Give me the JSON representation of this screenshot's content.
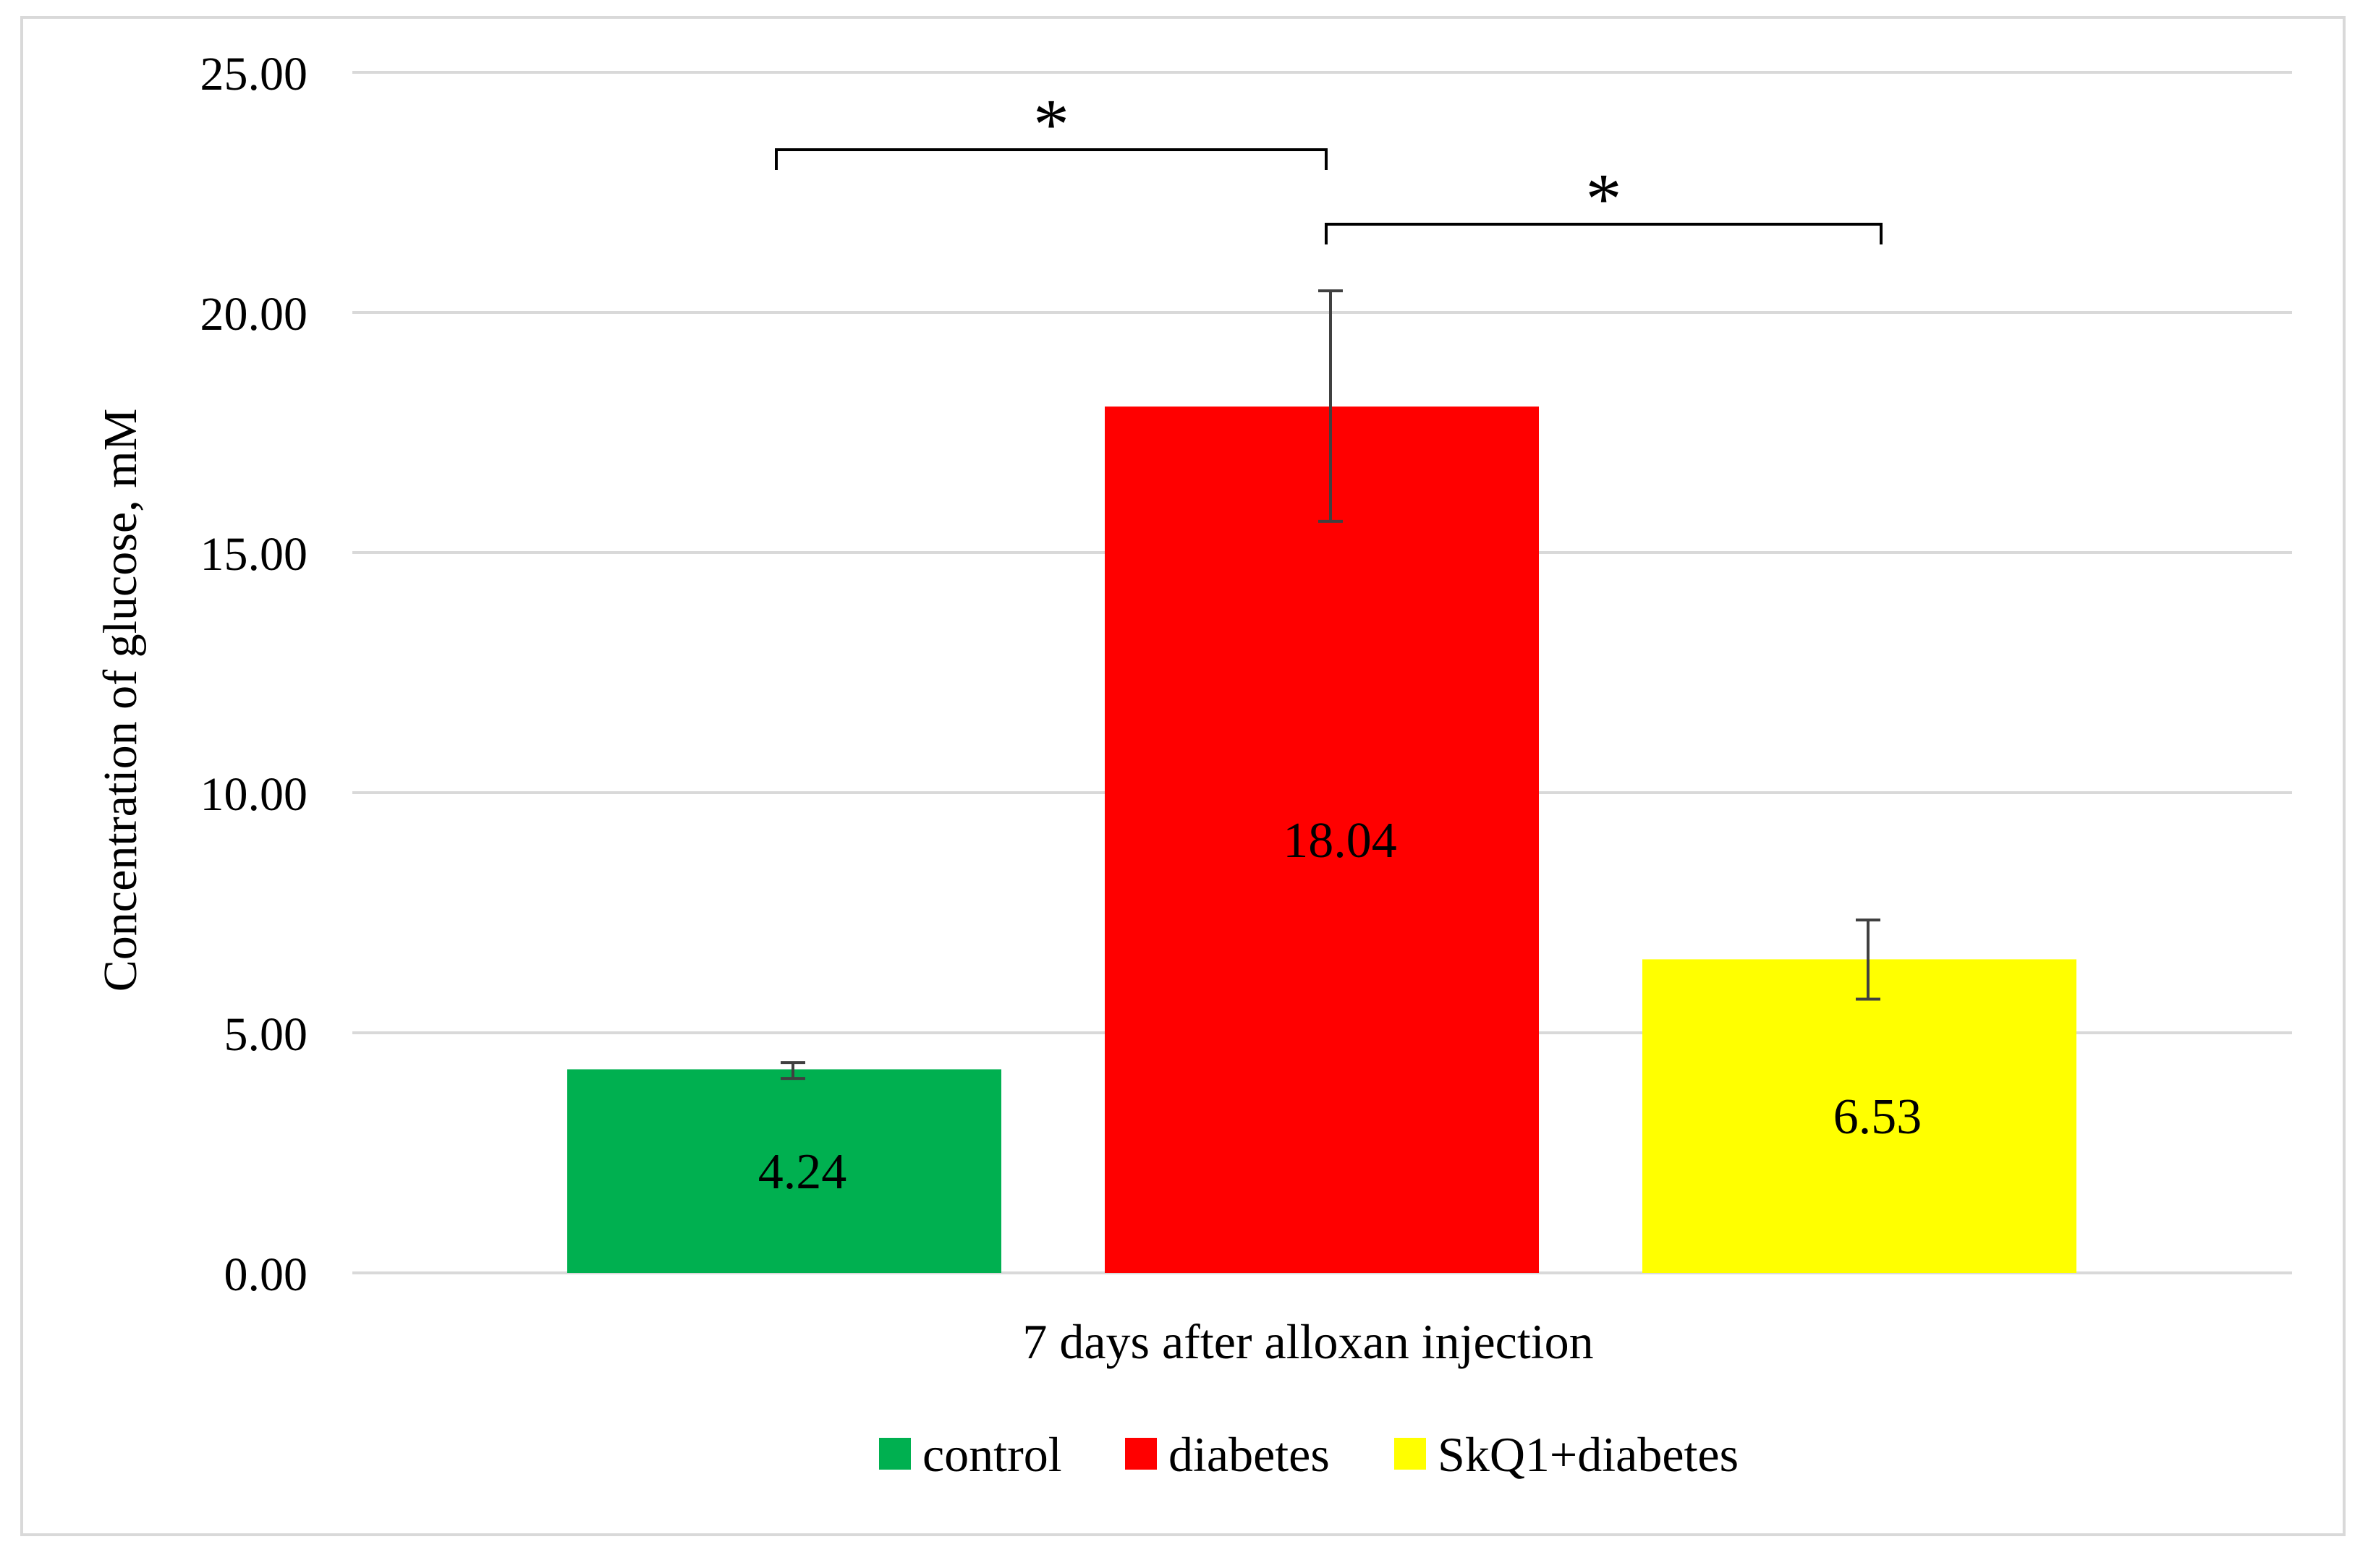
{
  "chart_data": {
    "type": "bar",
    "title": "",
    "xlabel": "7 days after alloxan injection",
    "ylabel": "Concentration of glucose, mM",
    "ylim": [
      0,
      25
    ],
    "yticks": [
      "0.00",
      "5.00",
      "10.00",
      "15.00",
      "20.00",
      "25.00"
    ],
    "grid": true,
    "legend_position": "bottom",
    "series": [
      {
        "name": "control",
        "value": 4.24,
        "label": "4.24",
        "error_low": 4.05,
        "error_high": 4.38,
        "color": "#00b050"
      },
      {
        "name": "diabetes",
        "value": 18.04,
        "label": "18.04",
        "error_low": 15.65,
        "error_high": 20.45,
        "color": "#ff0000"
      },
      {
        "name": "SkQ1+diabetes",
        "value": 6.53,
        "label": "6.53",
        "error_low": 5.7,
        "error_high": 7.35,
        "color": "#ffff00"
      }
    ],
    "significance": [
      {
        "from": "control",
        "to": "diabetes",
        "label": "*"
      },
      {
        "from": "diabetes",
        "to": "SkQ1+diabetes",
        "label": "*"
      }
    ]
  }
}
